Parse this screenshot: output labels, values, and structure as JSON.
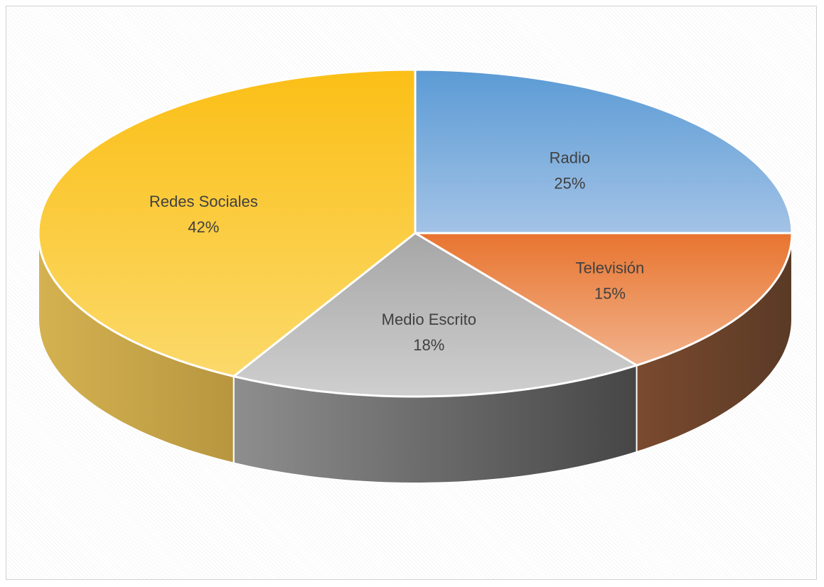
{
  "chart_data": {
    "type": "pie",
    "style": "3d",
    "slices": [
      {
        "label": "Radio",
        "value": 25,
        "value_label": "25%",
        "color": "#7aa8db"
      },
      {
        "label": "Televisión",
        "value": 15,
        "value_label": "15%",
        "color": "#ed8a4f"
      },
      {
        "label": "Medio Escrito",
        "value": 18,
        "value_label": "18%",
        "color": "#b8b8b8"
      },
      {
        "label": "Redes Sociales",
        "value": 42,
        "value_label": "42%",
        "color": "#fbc93b"
      }
    ]
  }
}
